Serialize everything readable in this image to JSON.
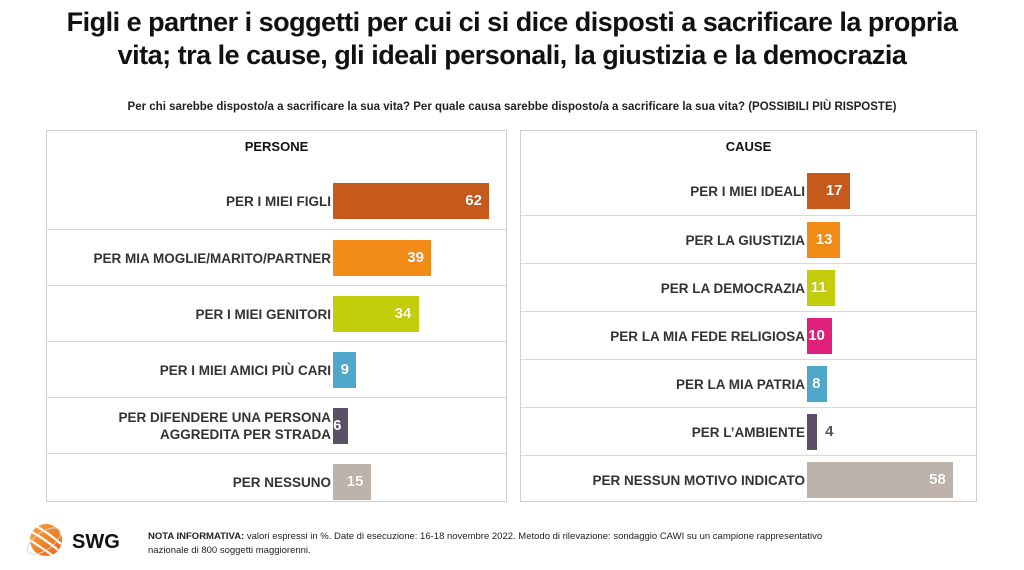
{
  "title_line1": "Figli e partner i soggetti per cui ci si dice disposti a sacrificare la propria",
  "title_line2": "vita; tra le cause, gli ideali personali, la giustizia e la democrazia",
  "subtitle": "Per chi sarebbe disposto/a a sacrificare la sua vita? Per quale causa sarebbe disposto/a a sacrificare la sua vita? (POSSIBILI PIÙ RISPOSTE)",
  "footer": {
    "logo_text": "SWG",
    "note_label": "NOTA INFORMATIVA:",
    "note_text": " valori espressi in %. Date di esecuzione: 16-18 novembre 2022. Metodo di rilevazione: sondaggio CAWI su un campione rappresentativo nazionale di 800 soggetti maggiorenni."
  },
  "chart_data": [
    {
      "type": "bar",
      "orientation": "horizontal",
      "title": "PERSONE",
      "unit": "%",
      "categories": [
        "PER I MIEI FIGLI",
        "PER MIA MOGLIE/MARITO/PARTNER",
        "PER I MIEI GENITORI",
        "PER I MIEI AMICI PIÙ CARI",
        "PER DIFENDERE UNA PERSONA AGGREDITA PER STRADA",
        "PER NESSUNO"
      ],
      "values": [
        62,
        39,
        34,
        9,
        6,
        15
      ],
      "colors": [
        "#c55a1a",
        "#f28c16",
        "#c3cd0b",
        "#4fa8c9",
        "#5a5068",
        "#bdb3ab"
      ],
      "xlim": [
        0,
        65
      ],
      "grid": false,
      "legend": "none"
    },
    {
      "type": "bar",
      "orientation": "horizontal",
      "title": "CAUSE",
      "unit": "%",
      "categories": [
        "PER I MIEI IDEALI",
        "PER LA GIUSTIZIA",
        "PER LA DEMOCRAZIA",
        "PER LA MIA FEDE RELIGIOSA",
        "PER LA MIA PATRIA",
        "PER L’AMBIENTE",
        "PER NESSUN MOTIVO INDICATO"
      ],
      "values": [
        17,
        13,
        11,
        10,
        8,
        4,
        58
      ],
      "colors": [
        "#c55a1a",
        "#f28c16",
        "#c3cd0b",
        "#e0207a",
        "#4fa8c9",
        "#5a5068",
        "#bdb3ab"
      ],
      "xlim": [
        0,
        65
      ],
      "grid": false,
      "legend": "none"
    }
  ]
}
